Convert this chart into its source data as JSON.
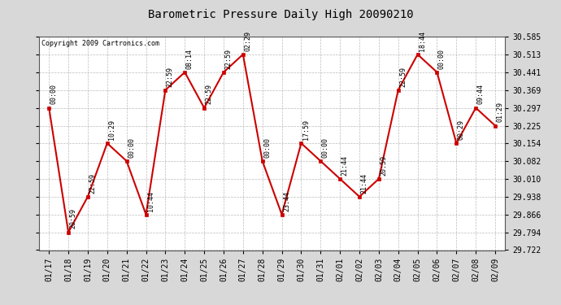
{
  "title": "Barometric Pressure Daily High 20090210",
  "copyright": "Copyright 2009 Cartronics.com",
  "background_color": "#d8d8d8",
  "plot_bg_color": "#ffffff",
  "line_color": "#cc0000",
  "marker_color": "#cc0000",
  "grid_color": "#aaaaaa",
  "ylim": [
    29.722,
    30.585
  ],
  "yticks": [
    29.722,
    29.794,
    29.866,
    29.938,
    30.01,
    30.082,
    30.154,
    30.225,
    30.297,
    30.369,
    30.441,
    30.513,
    30.585
  ],
  "points": [
    {
      "date": "01/17",
      "value": 30.297,
      "label": "00:00"
    },
    {
      "date": "01/18",
      "value": 29.794,
      "label": "20:59"
    },
    {
      "date": "01/19",
      "value": 29.938,
      "label": "22:59"
    },
    {
      "date": "01/20",
      "value": 30.154,
      "label": "10:29"
    },
    {
      "date": "01/21",
      "value": 30.082,
      "label": "00:00"
    },
    {
      "date": "01/22",
      "value": 29.866,
      "label": "10:44"
    },
    {
      "date": "01/23",
      "value": 30.369,
      "label": "22:59"
    },
    {
      "date": "01/24",
      "value": 30.441,
      "label": "08:14"
    },
    {
      "date": "01/25",
      "value": 30.297,
      "label": "22:59"
    },
    {
      "date": "01/26",
      "value": 30.441,
      "label": "22:59"
    },
    {
      "date": "01/27",
      "value": 30.513,
      "label": "02:29"
    },
    {
      "date": "01/28",
      "value": 30.082,
      "label": "00:00"
    },
    {
      "date": "01/29",
      "value": 29.866,
      "label": "23:44"
    },
    {
      "date": "01/30",
      "value": 30.154,
      "label": "17:59"
    },
    {
      "date": "01/31",
      "value": 30.082,
      "label": "00:00"
    },
    {
      "date": "02/01",
      "value": 30.01,
      "label": "21:44"
    },
    {
      "date": "02/02",
      "value": 29.938,
      "label": "21:44"
    },
    {
      "date": "02/03",
      "value": 30.01,
      "label": "20:59"
    },
    {
      "date": "02/04",
      "value": 30.369,
      "label": "22:59"
    },
    {
      "date": "02/05",
      "value": 30.513,
      "label": "18:44"
    },
    {
      "date": "02/06",
      "value": 30.441,
      "label": "00:00"
    },
    {
      "date": "02/07",
      "value": 30.154,
      "label": "00:29"
    },
    {
      "date": "02/08",
      "value": 30.297,
      "label": "09:44"
    },
    {
      "date": "02/09",
      "value": 30.225,
      "label": "01:29"
    }
  ]
}
